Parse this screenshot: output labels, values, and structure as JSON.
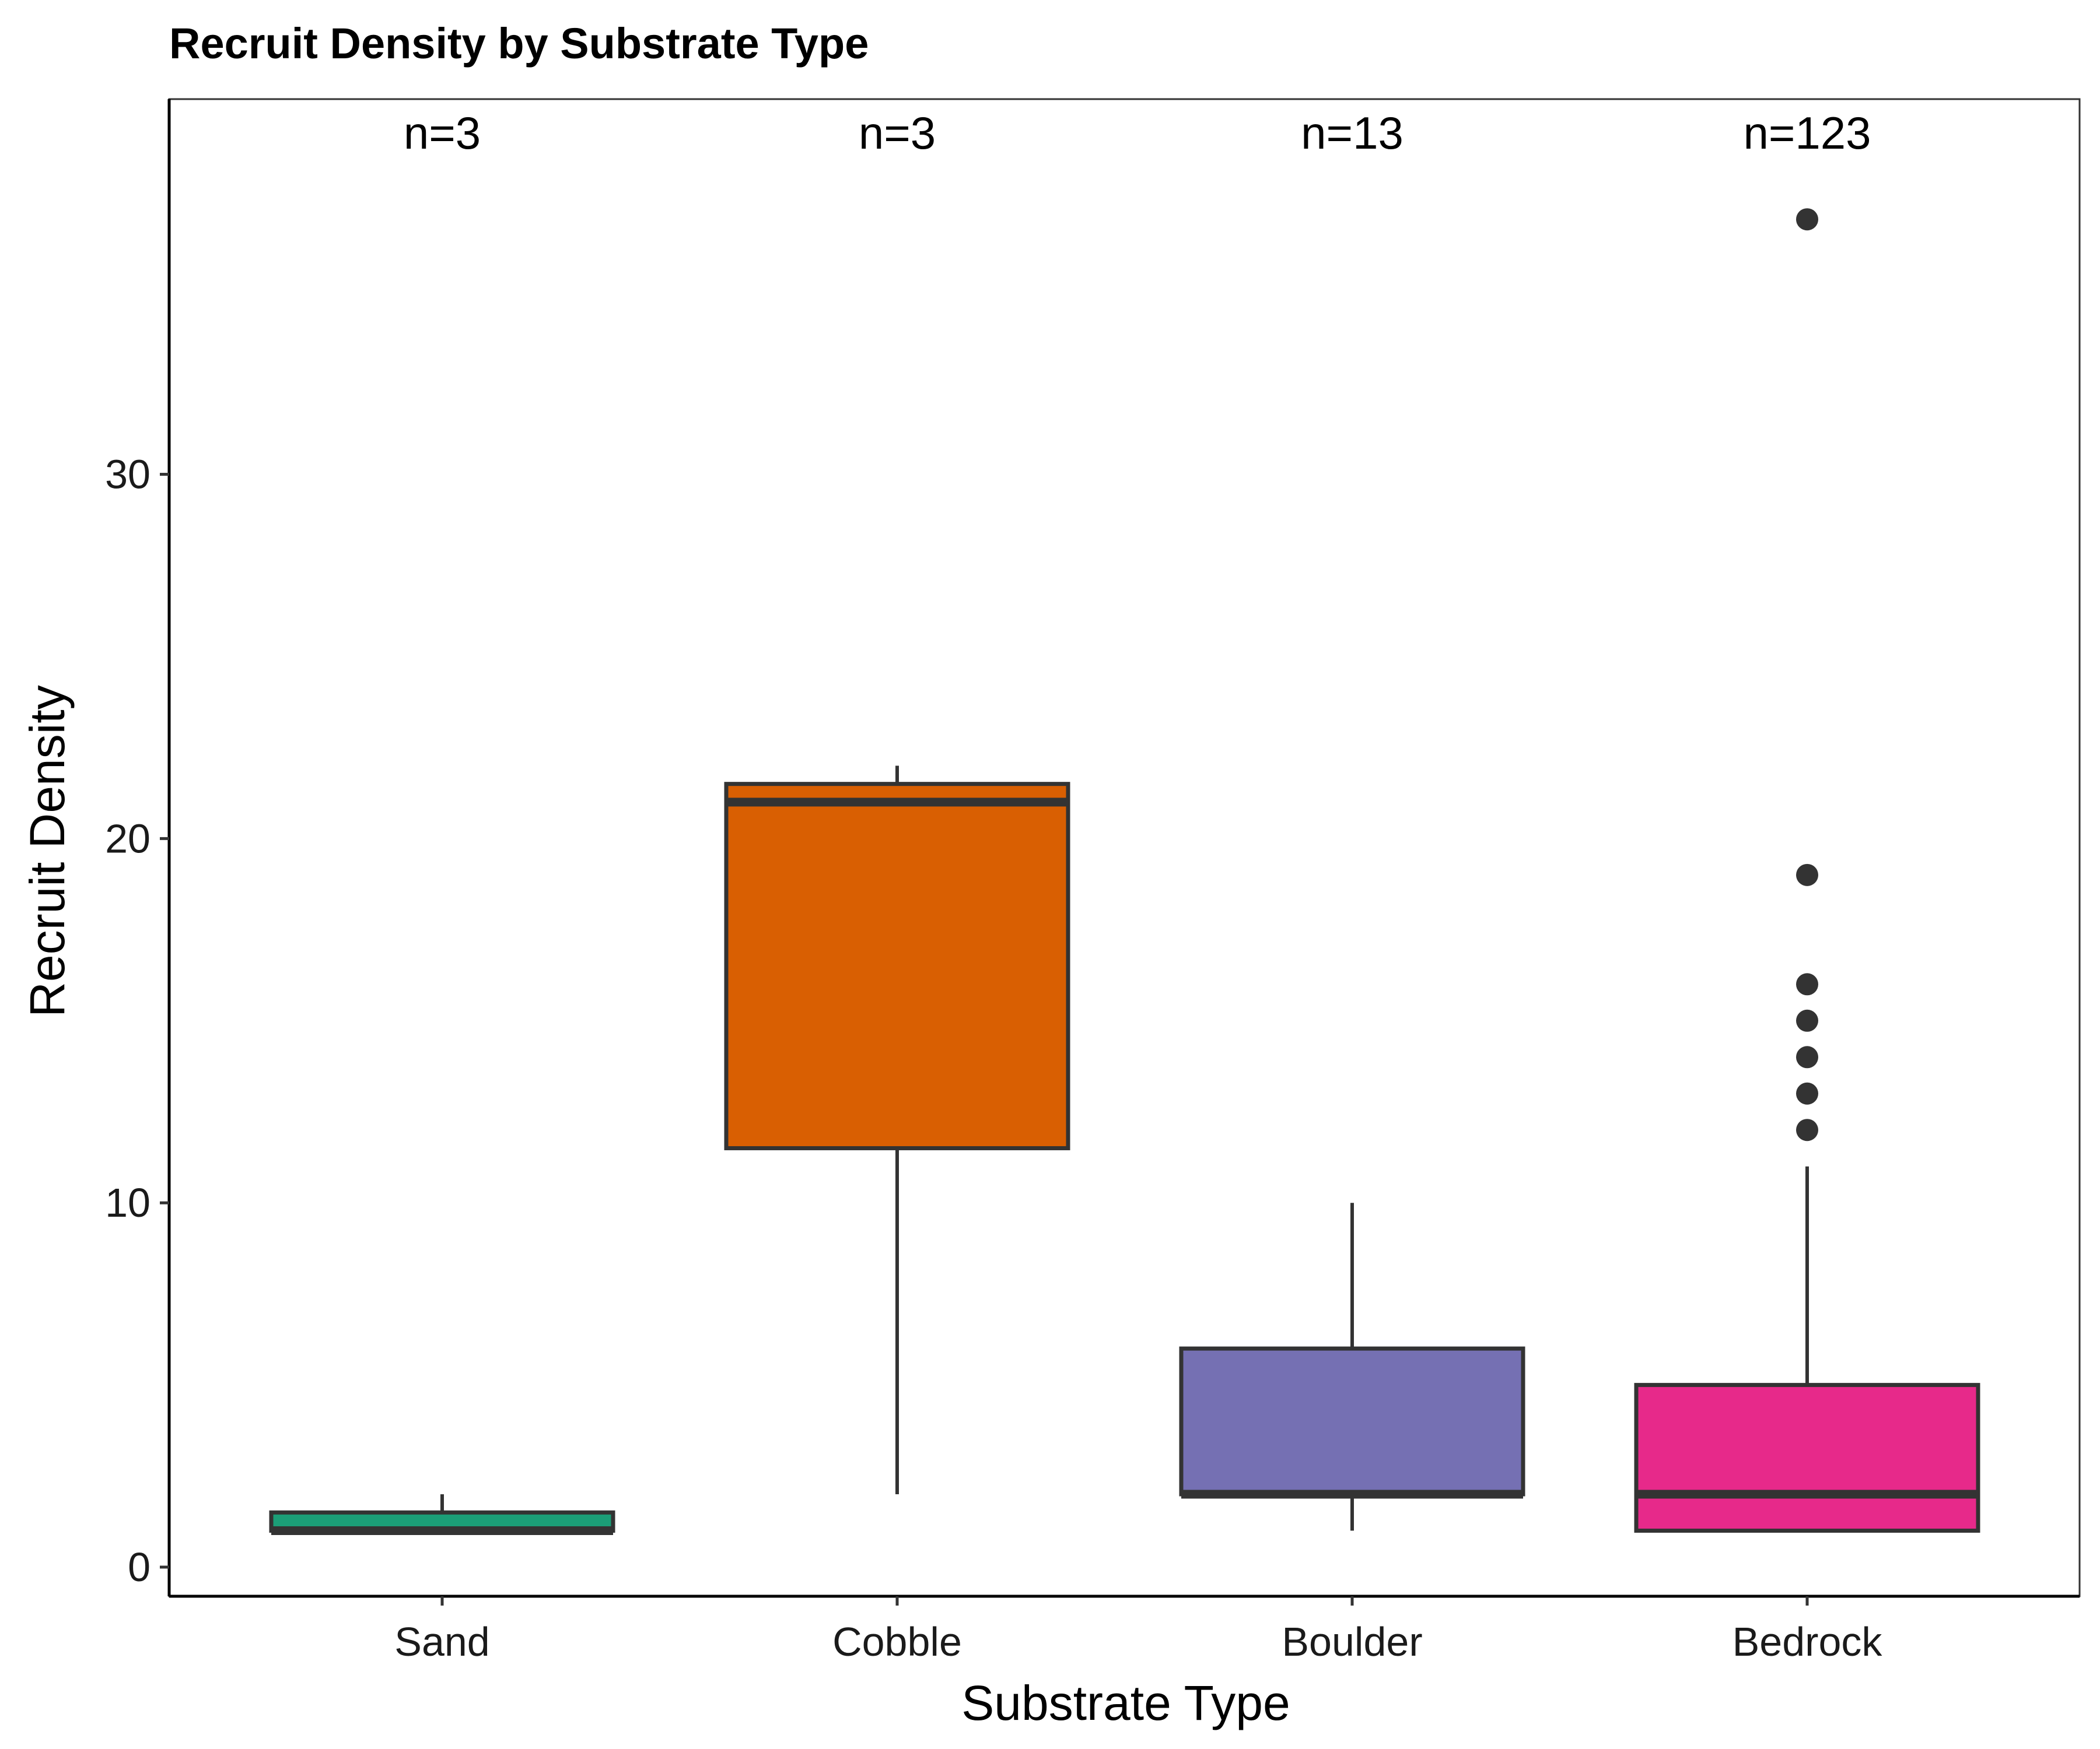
{
  "chart_data": {
    "type": "boxplot",
    "title": "Recruit Density by Substrate Type",
    "xlabel": "Substrate Type",
    "ylabel": "Recruit Density",
    "ylim": [
      -0.8,
      40.3
    ],
    "yticks": [
      0,
      10,
      20,
      30
    ],
    "grid": false,
    "legend": "none",
    "categories": [
      "Sand",
      "Cobble",
      "Boulder",
      "Bedrock"
    ],
    "n_labels": [
      "n=3",
      "n=3",
      "n=13",
      "n=123"
    ],
    "colors": [
      "#1b9e77",
      "#d95f02",
      "#7570b3",
      "#e7298a"
    ],
    "boxes": [
      {
        "category": "Sand",
        "whisker_low": 1,
        "q1": 1,
        "median": 1,
        "q3": 1.5,
        "whisker_high": 2,
        "outliers": []
      },
      {
        "category": "Cobble",
        "whisker_low": 2,
        "q1": 11.5,
        "median": 21,
        "q3": 21.5,
        "whisker_high": 22,
        "outliers": []
      },
      {
        "category": "Boulder",
        "whisker_low": 1,
        "q1": 2,
        "median": 2,
        "q3": 6,
        "whisker_high": 10,
        "outliers": []
      },
      {
        "category": "Bedrock",
        "whisker_low": 1,
        "q1": 1,
        "median": 2,
        "q3": 5,
        "whisker_high": 11,
        "outliers": [
          12,
          13,
          14,
          15,
          16,
          19,
          37
        ]
      }
    ]
  }
}
